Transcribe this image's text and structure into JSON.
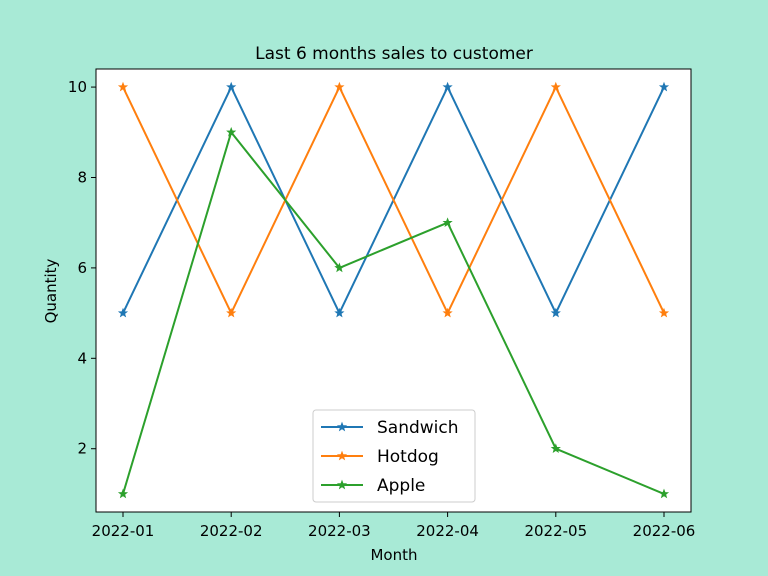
{
  "figure": {
    "background": "#a8ead6"
  },
  "chart_data": {
    "type": "line",
    "title": "Last 6 months sales to customer",
    "xlabel": "Month",
    "ylabel": "Quantity",
    "categories": [
      "2022-01",
      "2022-02",
      "2022-03",
      "2022-04",
      "2022-05",
      "2022-06"
    ],
    "yticks": [
      2,
      4,
      6,
      8,
      10
    ],
    "ylim": [
      0.6,
      10.4
    ],
    "grid": false,
    "marker": "star",
    "legend": {
      "position": "bottom-center"
    },
    "series": [
      {
        "name": "Sandwich",
        "color": "#1f77b4",
        "values": [
          5,
          10,
          5,
          10,
          5,
          10
        ]
      },
      {
        "name": "Hotdog",
        "color": "#ff7f0e",
        "values": [
          10,
          5,
          10,
          5,
          10,
          5
        ]
      },
      {
        "name": "Apple",
        "color": "#2ca02c",
        "values": [
          1,
          9,
          6,
          7,
          2,
          1
        ]
      }
    ]
  }
}
